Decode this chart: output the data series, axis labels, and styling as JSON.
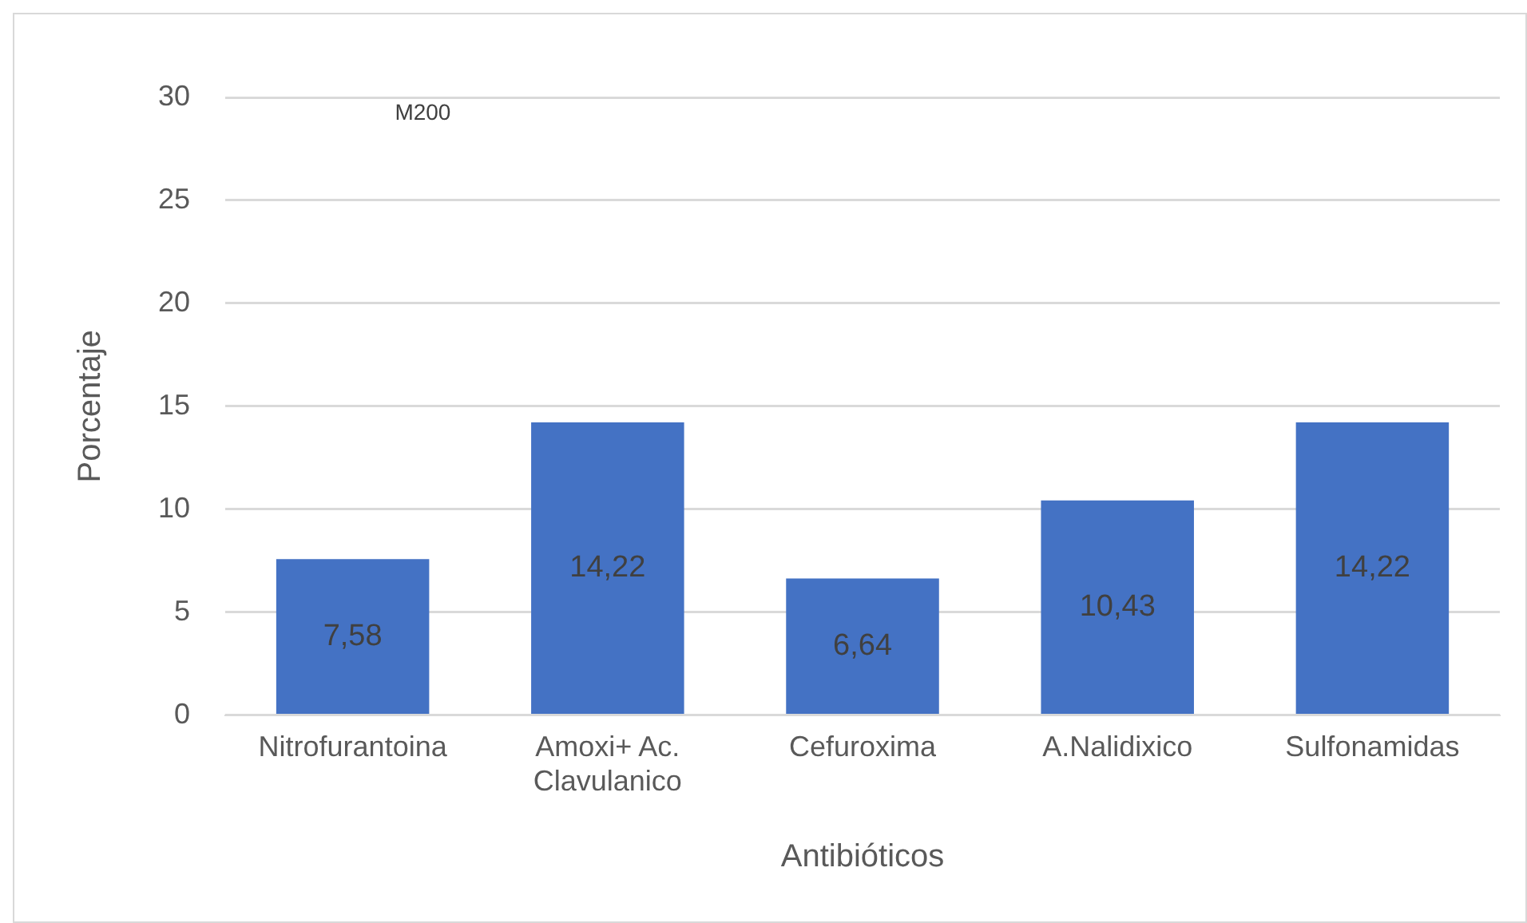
{
  "chart_data": {
    "type": "bar",
    "xlabel": "Antibióticos",
    "ylabel": "Porcentaje",
    "categories": [
      "Nitrofurantoina",
      "Amoxi+ Ac. Clavulanico",
      "Cefuroxima",
      "A.Nalidixico",
      "Sulfonamidas"
    ],
    "values": [
      7.58,
      14.22,
      6.64,
      10.43,
      14.22
    ],
    "value_labels": [
      "7,58",
      "14,22",
      "6,64",
      "10,43",
      "14,22"
    ],
    "color": "#4472c4",
    "ylim": [
      0,
      30
    ],
    "yticks": [
      0,
      5,
      10,
      15,
      20,
      25,
      30
    ],
    "grid": "y",
    "legend": false,
    "annotations": [
      "M200"
    ]
  }
}
